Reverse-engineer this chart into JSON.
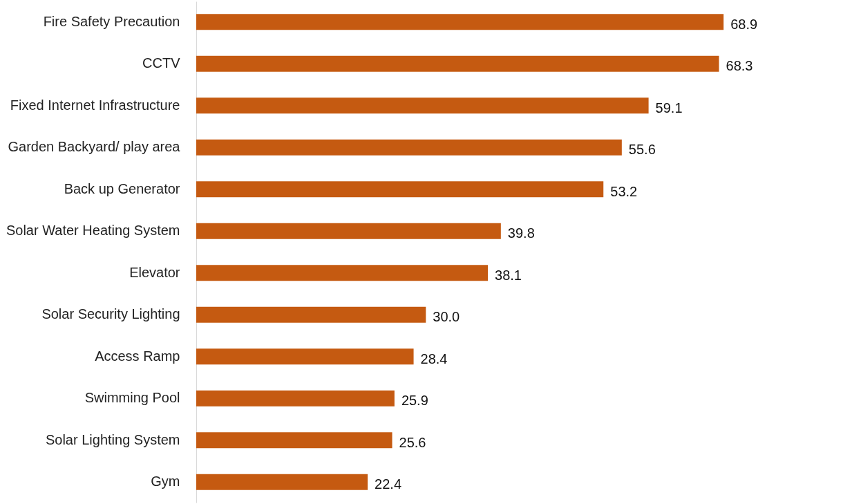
{
  "chart_data": {
    "type": "bar",
    "orientation": "horizontal",
    "categories": [
      "Fire Safety Precaution",
      "CCTV",
      "Fixed Internet Infrastructure",
      "Garden Backyard/ play area",
      "Back up Generator",
      "Solar Water Heating System",
      "Elevator",
      "Solar Security Lighting",
      "Access Ramp",
      "Swimming Pool",
      "Solar Lighting System",
      "Gym"
    ],
    "values": [
      68.9,
      68.3,
      59.1,
      55.6,
      53.2,
      39.8,
      38.1,
      30.0,
      28.4,
      25.9,
      25.6,
      22.4
    ],
    "value_labels": [
      "68.9",
      "68.3",
      "59.1",
      "55.6",
      "53.2",
      "39.8",
      "38.1",
      "30.0",
      "28.4",
      "25.9",
      "25.6",
      "22.4"
    ],
    "color": "#c55a11"
  }
}
